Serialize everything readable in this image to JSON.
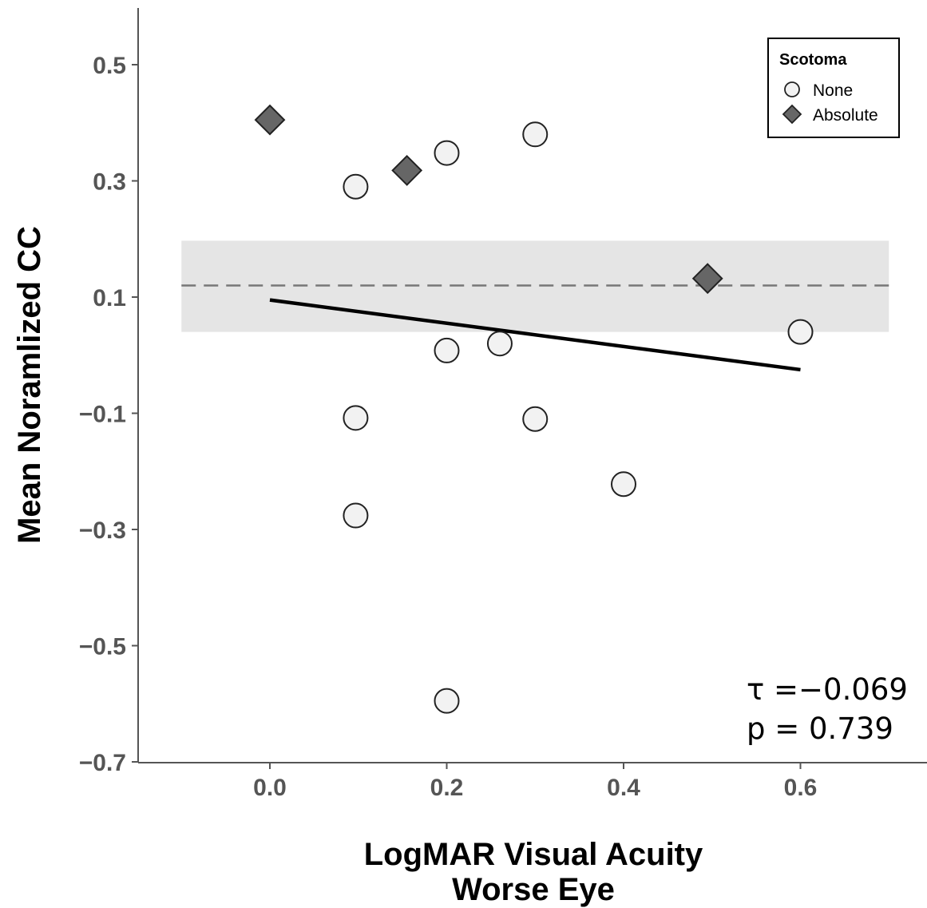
{
  "chart_data": {
    "type": "scatter",
    "xlabel_lines": [
      "LogMAR Visual Acuity",
      "Worse Eye"
    ],
    "ylabel": "Mean Noramlized CC",
    "xlim": [
      -0.15,
      0.74
    ],
    "ylim": [
      -0.7,
      0.6
    ],
    "x_ticks": [
      0.0,
      0.2,
      0.4,
      0.6
    ],
    "x_tick_labels": [
      "0.0",
      "0.2",
      "0.4",
      "0.6"
    ],
    "y_ticks": [
      0.5,
      0.3,
      0.1,
      -0.1,
      -0.3,
      -0.5,
      -0.7
    ],
    "y_tick_labels": [
      "0.5",
      "0.3",
      "0.1",
      "−0.1",
      "−0.3",
      "−0.5",
      "−0.7"
    ],
    "grid": false,
    "legend": {
      "title": "Scotoma",
      "position": "top-right",
      "entries": [
        {
          "label": "None",
          "marker": "circle",
          "fill": "#f2f2f2"
        },
        {
          "label": "Absolute",
          "marker": "diamond",
          "fill": "#666666"
        }
      ]
    },
    "series": [
      {
        "name": "None",
        "marker": "circle",
        "fill": "#f2f2f2",
        "x": [
          0.097,
          0.2,
          0.3,
          0.2,
          0.26,
          0.6,
          0.097,
          0.3,
          0.4,
          0.097,
          0.2
        ],
        "y": [
          0.29,
          0.348,
          0.38,
          0.008,
          0.02,
          0.04,
          -0.108,
          -0.11,
          -0.222,
          -0.276,
          -0.595
        ]
      },
      {
        "name": "Absolute",
        "marker": "diamond",
        "fill": "#666666",
        "x": [
          0.0,
          0.155,
          0.495
        ],
        "y": [
          0.405,
          0.318,
          0.132
        ]
      }
    ],
    "trend_line": {
      "x": [
        0.0,
        0.6
      ],
      "y": [
        0.095,
        -0.025
      ],
      "color": "#000000"
    },
    "reference_line": {
      "y": 0.12,
      "style": "dashed",
      "color": "#777777",
      "x": [
        -0.1,
        0.7
      ]
    },
    "reference_band": {
      "y": [
        0.04,
        0.197
      ],
      "x": [
        -0.1,
        0.7
      ],
      "color": "#e5e5e5"
    },
    "annotations": [
      "τ =−0.069",
      "p = 0.739"
    ]
  }
}
